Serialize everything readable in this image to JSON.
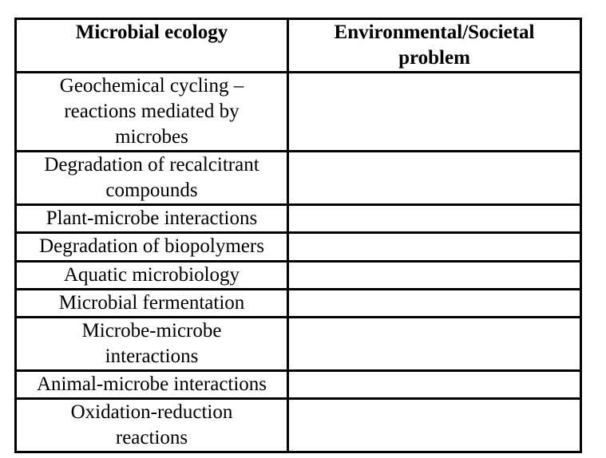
{
  "table": {
    "columns": [
      {
        "lines": [
          "Microbial ecology"
        ]
      },
      {
        "lines": [
          "Environmental/Societal",
          "problem"
        ]
      }
    ],
    "rows": [
      {
        "topic_lines": [
          "Geochemical cycling –",
          "reactions mediated by",
          "microbes"
        ],
        "problem": ""
      },
      {
        "topic_lines": [
          "Degradation of recalcitrant",
          "compounds"
        ],
        "problem": ""
      },
      {
        "topic_lines": [
          "Plant-microbe interactions"
        ],
        "problem": ""
      },
      {
        "topic_lines": [
          "Degradation of biopolymers"
        ],
        "problem": ""
      },
      {
        "topic_lines": [
          "Aquatic microbiology"
        ],
        "problem": ""
      },
      {
        "topic_lines": [
          "Microbial fermentation"
        ],
        "problem": ""
      },
      {
        "topic_lines": [
          "Microbe-microbe",
          "interactions"
        ],
        "problem": ""
      },
      {
        "topic_lines": [
          "Animal-microbe interactions"
        ],
        "problem": ""
      },
      {
        "topic_lines": [
          "Oxidation-reduction",
          "reactions"
        ],
        "problem": ""
      }
    ]
  },
  "colors": {
    "border": "#000000",
    "text": "#000000",
    "background": "#ffffff"
  }
}
